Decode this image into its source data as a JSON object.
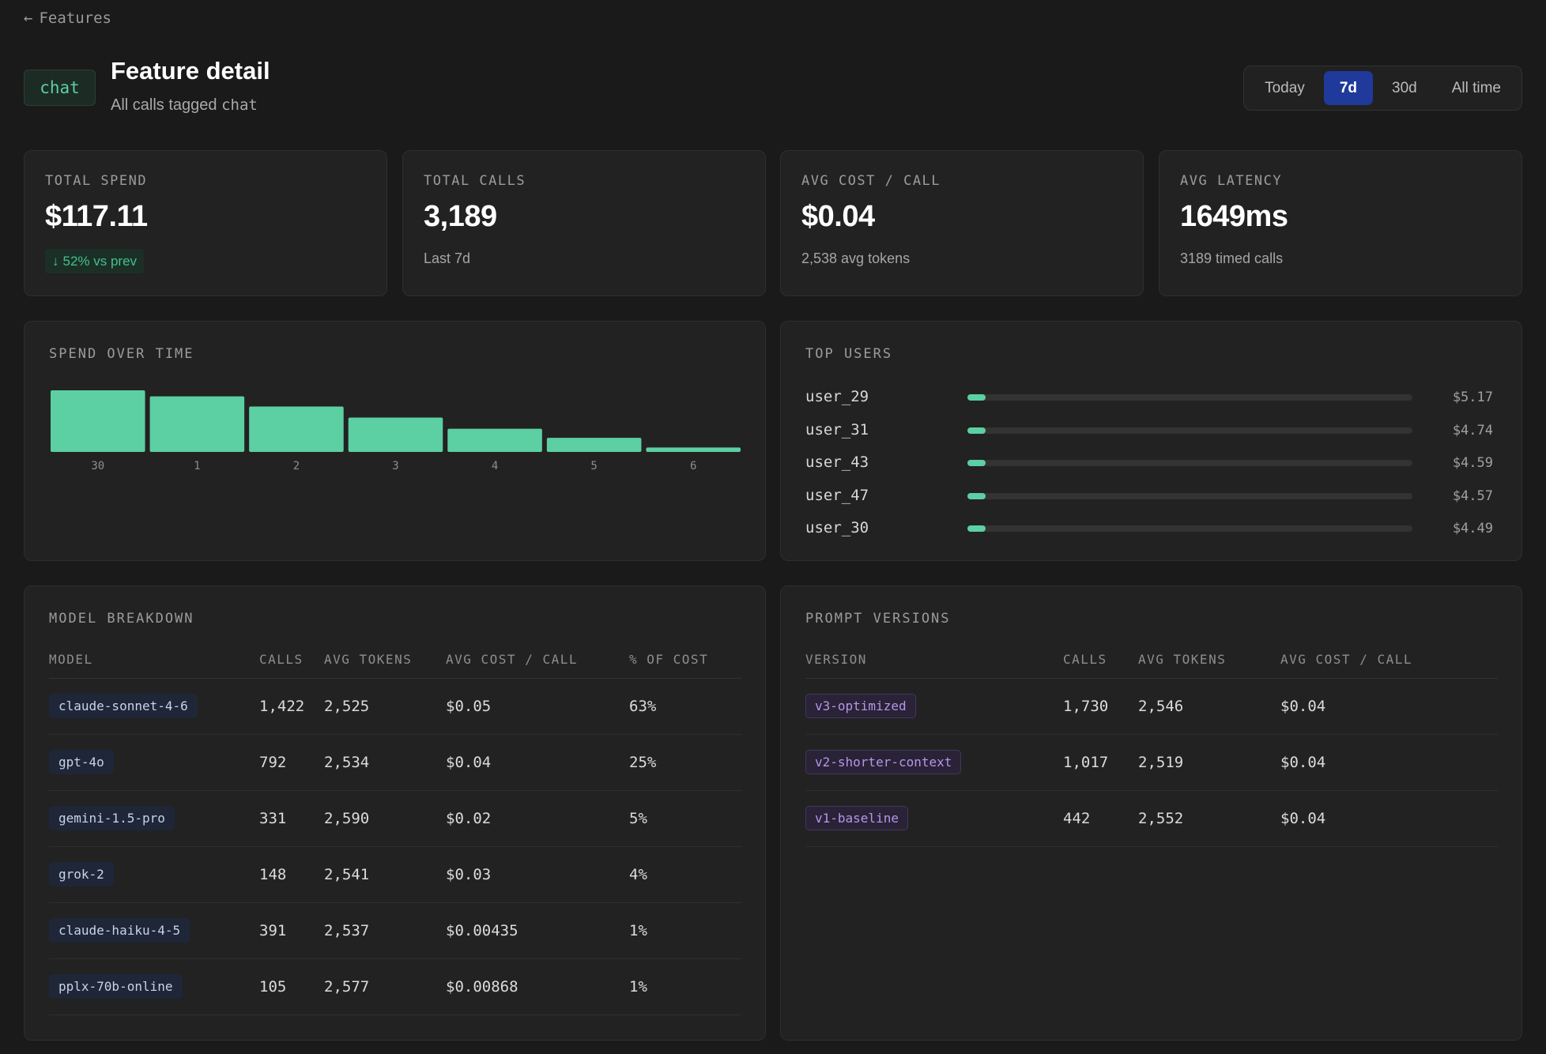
{
  "nav": {
    "back_arrow": "←",
    "back_label": "Features"
  },
  "header": {
    "feature_tag": "chat",
    "title": "Feature detail",
    "subtitle_prefix": "All calls tagged",
    "subtitle_tag": "chat"
  },
  "range": {
    "options": [
      "Today",
      "7d",
      "30d",
      "All time"
    ],
    "selected": "7d"
  },
  "stats": {
    "total_spend": {
      "label": "TOTAL SPEND",
      "value": "$117.11",
      "delta_icon": "arrow-down-icon",
      "delta_arrow": "↓",
      "delta": "52% vs prev"
    },
    "total_calls": {
      "label": "TOTAL CALLS",
      "value": "3,189",
      "sub": "Last 7d"
    },
    "avg_cost": {
      "label": "AVG COST / CALL",
      "value": "$0.04",
      "sub": "2,538 avg tokens"
    },
    "avg_latency": {
      "label": "AVG LATENCY",
      "value": "1649ms",
      "sub": "3189 timed calls"
    }
  },
  "spend_chart": {
    "title": "SPEND OVER TIME"
  },
  "chart_data": {
    "type": "bar",
    "title": "SPEND OVER TIME",
    "categories": [
      "30",
      "1",
      "2",
      "3",
      "4",
      "5",
      "6"
    ],
    "values": [
      30.5,
      27.5,
      22.5,
      17.0,
      11.5,
      7.0,
      2.2
    ],
    "ylim": [
      0,
      30.5
    ],
    "grid": false,
    "color": "#5ccfa3"
  },
  "top_users": {
    "title": "TOP USERS",
    "items": [
      {
        "name": "user_29",
        "amount": "$5.17",
        "share": 0.04
      },
      {
        "name": "user_31",
        "amount": "$4.74",
        "share": 0.04
      },
      {
        "name": "user_43",
        "amount": "$4.59",
        "share": 0.04
      },
      {
        "name": "user_47",
        "amount": "$4.57",
        "share": 0.04
      },
      {
        "name": "user_30",
        "amount": "$4.49",
        "share": 0.04
      }
    ]
  },
  "model_breakdown": {
    "title": "MODEL BREAKDOWN",
    "columns": [
      "MODEL",
      "CALLS",
      "AVG TOKENS",
      "AVG COST / CALL",
      "% OF COST"
    ],
    "rows": [
      [
        "claude-sonnet-4-6",
        "1,422",
        "2,525",
        "$0.05",
        "63%"
      ],
      [
        "gpt-4o",
        "792",
        "2,534",
        "$0.04",
        "25%"
      ],
      [
        "gemini-1.5-pro",
        "331",
        "2,590",
        "$0.02",
        "5%"
      ],
      [
        "grok-2",
        "148",
        "2,541",
        "$0.03",
        "4%"
      ],
      [
        "claude-haiku-4-5",
        "391",
        "2,537",
        "$0.00435",
        "1%"
      ],
      [
        "pplx-70b-online",
        "105",
        "2,577",
        "$0.00868",
        "1%"
      ]
    ]
  },
  "prompt_versions": {
    "title": "PROMPT VERSIONS",
    "columns": [
      "VERSION",
      "CALLS",
      "AVG TOKENS",
      "AVG COST / CALL"
    ],
    "rows": [
      [
        "v3-optimized",
        "1,730",
        "2,546",
        "$0.04"
      ],
      [
        "v2-shorter-context",
        "1,017",
        "2,519",
        "$0.04"
      ],
      [
        "v1-baseline",
        "442",
        "2,552",
        "$0.04"
      ]
    ]
  },
  "colors": {
    "accent_green": "#5ccfa3",
    "active_range": "#1f3a9a",
    "background": "#1a1a1a",
    "card": "#222222"
  }
}
